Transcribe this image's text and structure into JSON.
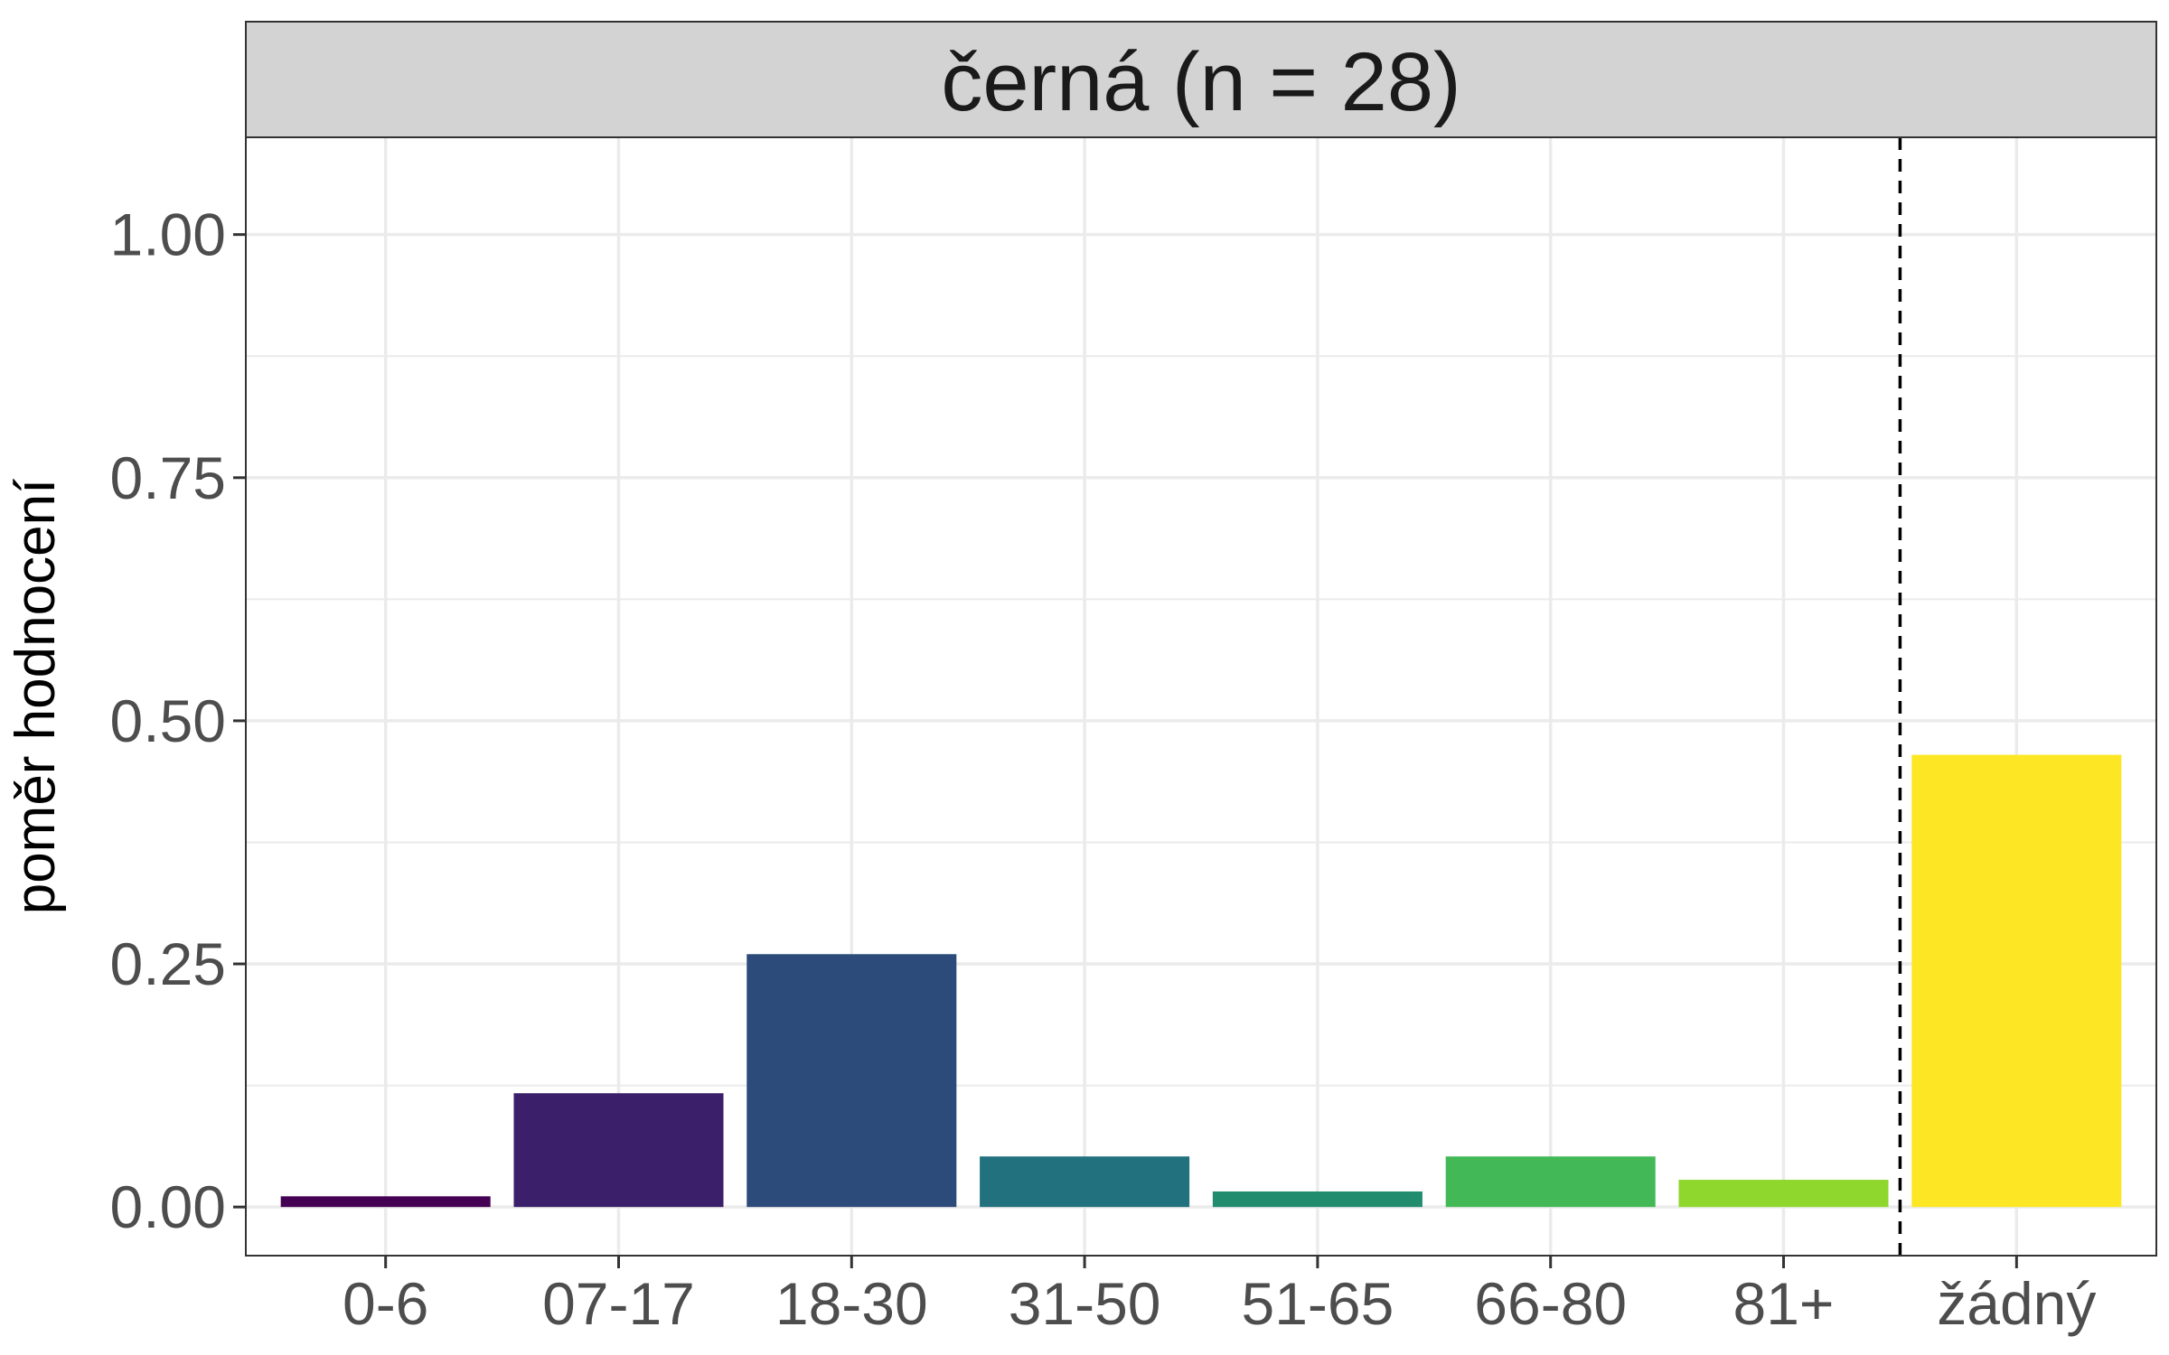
{
  "chart_data": {
    "type": "bar",
    "facet_title": "černá (n = 28)",
    "xlabel": "",
    "ylabel": "poměr hodnocení",
    "categories": [
      "0-6",
      "07-17",
      "18-30",
      "31-50",
      "51-65",
      "66-80",
      "81+",
      "žádný"
    ],
    "values": [
      0.011,
      0.117,
      0.26,
      0.052,
      0.016,
      0.052,
      0.028,
      0.465
    ],
    "colors": [
      "#440154",
      "#3b1f6a",
      "#2c4a7a",
      "#21717e",
      "#228c6f",
      "#43b857",
      "#8fd62d",
      "#fde725"
    ],
    "ylim": [
      -0.05,
      1.1
    ],
    "yticks": [
      0,
      0.25,
      0.5,
      0.75,
      1.0
    ],
    "ytick_labels": [
      "0.00",
      "0.25",
      "0.50",
      "0.75",
      "1.00"
    ],
    "reference_line": {
      "style": "dashed",
      "between": [
        "81+",
        "žádný"
      ]
    },
    "grid": true,
    "legend": "none"
  }
}
